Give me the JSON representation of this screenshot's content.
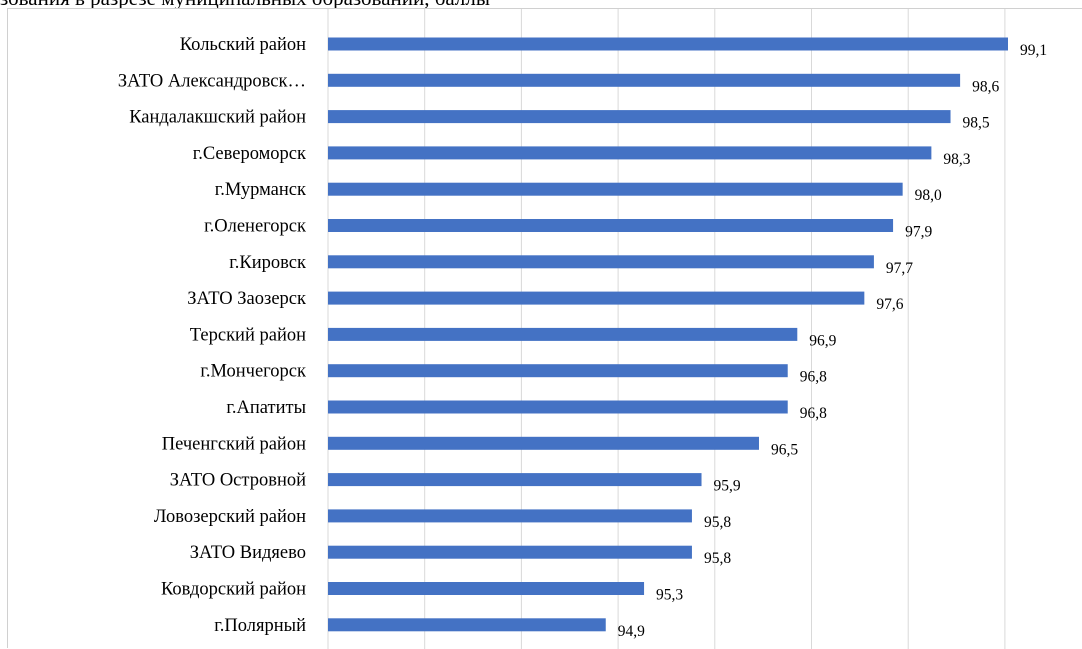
{
  "caption": "зования в разрезе муниципальных образований, баллы",
  "chart_data": {
    "type": "bar",
    "orientation": "horizontal",
    "title": "",
    "xlabel": "",
    "ylabel": "",
    "color": "#4472c4",
    "grid": true,
    "categories": [
      "Кольский район",
      "ЗАТО Александровск…",
      "Кандалакшский район",
      "г.Североморск",
      "г.Мурманск",
      "г.Оленегорск",
      "г.Кировск",
      "ЗАТО Заозерск",
      "Терский район",
      "г.Мончегорск",
      "г.Апатиты",
      "Печенгский район",
      "ЗАТО Островной",
      "Ловозерский район",
      "ЗАТО Видяево",
      "Ковдорский район",
      "г.Полярный"
    ],
    "values": [
      99.1,
      98.6,
      98.5,
      98.3,
      98.0,
      97.9,
      97.7,
      97.6,
      96.9,
      96.8,
      96.8,
      96.5,
      95.9,
      95.8,
      95.8,
      95.3,
      94.9
    ],
    "value_labels": [
      "99,1",
      "98,6",
      "98,5",
      "98,3",
      "98,0",
      "97,9",
      "97,7",
      "97,6",
      "96,9",
      "96,8",
      "96,8",
      "96,5",
      "95,9",
      "95,8",
      "95,8",
      "95,3",
      "94,9"
    ],
    "xlim": [
      92.0,
      99.1
    ]
  }
}
